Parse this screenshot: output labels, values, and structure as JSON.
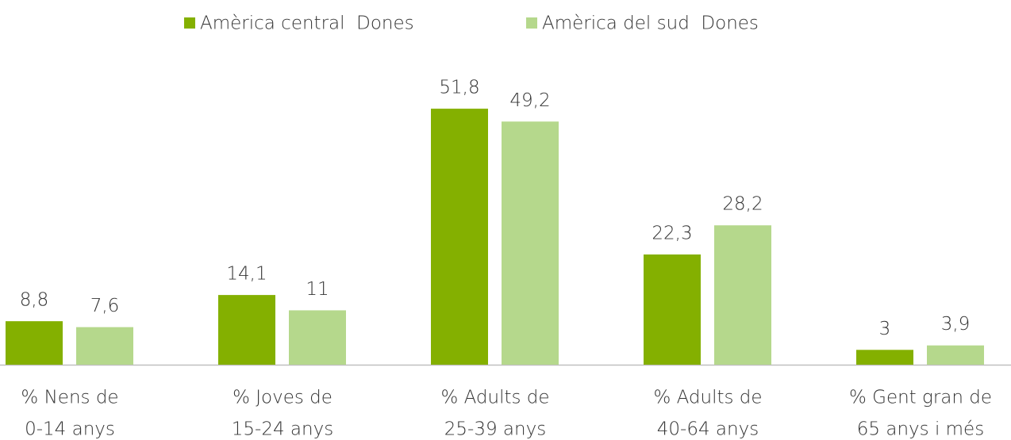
{
  "chart_data": {
    "type": "bar",
    "categories": [
      [
        "% Nens de",
        "0-14 anys"
      ],
      [
        "% Joves de",
        "15-24 anys"
      ],
      [
        "% Adults de",
        "25-39 anys"
      ],
      [
        "% Adults de",
        "40-64 anys"
      ],
      [
        "% Gent gran de",
        "65 anys i més"
      ]
    ],
    "series": [
      {
        "name": "Amèrica central  Dones",
        "color": "#84b000",
        "values": [
          8.8,
          14.1,
          51.8,
          22.3,
          3
        ],
        "value_labels": [
          "8,8",
          "14,1",
          "51,8",
          "22,3",
          "3"
        ]
      },
      {
        "name": "Amèrica del sud  Dones",
        "color": "#b5d88c",
        "values": [
          7.6,
          11,
          49.2,
          28.2,
          3.9
        ],
        "value_labels": [
          "7,6",
          "11",
          "49,2",
          "28,2",
          "3,9"
        ]
      }
    ],
    "ylim": [
      0,
      60
    ],
    "legend": "top"
  }
}
